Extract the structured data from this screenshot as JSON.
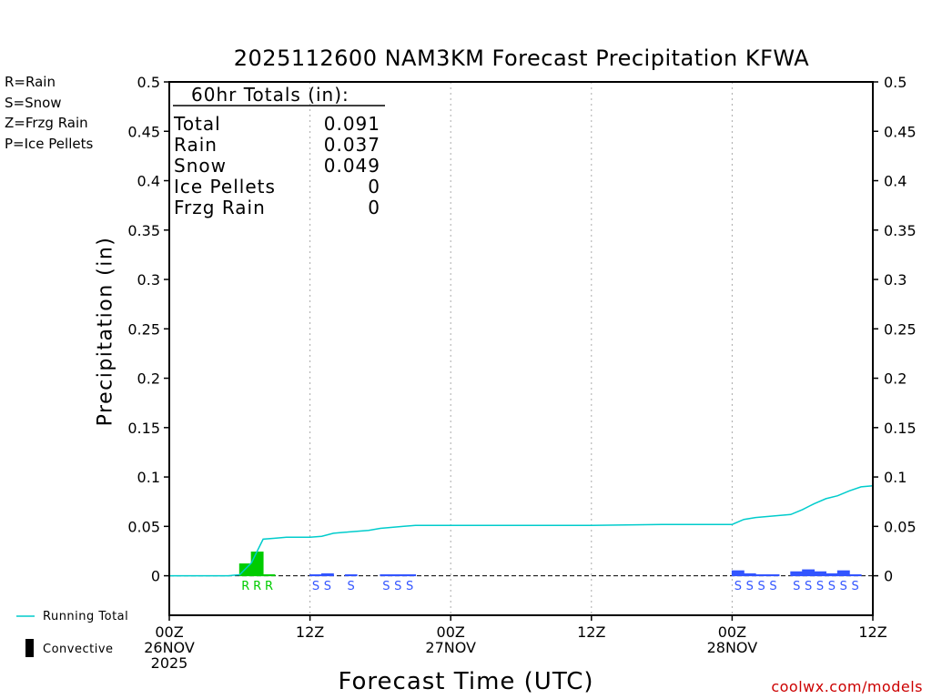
{
  "legend": {
    "items": [
      {
        "label": "R=Rain",
        "color": "#00cc00"
      },
      {
        "label": "S=Snow",
        "color": "#3355ff"
      },
      {
        "label": "Z=Frzg Rain",
        "color": "#ff8c1a"
      },
      {
        "label": "P=Ice Pellets",
        "color": "#ff1493"
      }
    ]
  },
  "totals": {
    "header": "60hr Totals (in):",
    "rows": [
      {
        "label": "Total",
        "value": "0.091"
      },
      {
        "label": "Rain",
        "value": "0.037"
      },
      {
        "label": "Snow",
        "value": "0.049"
      },
      {
        "label": "Ice Pellets",
        "value": "0"
      },
      {
        "label": "Frzg Rain",
        "value": "0"
      }
    ]
  },
  "key": {
    "running_total_label": "Running Total",
    "convective_label": "Convective",
    "running_total_color": "#00cccc"
  },
  "credit": "coolwx.com/models",
  "chart_data": {
    "type": "bar",
    "title": "2025112600 NAM3KM Forecast Precipitation KFWA",
    "xlabel": "Forecast Time (UTC)",
    "ylabel": "Precipitation (in)",
    "ylim": [
      -0.04,
      0.5
    ],
    "yticks": [
      0,
      0.05,
      0.1,
      0.15,
      0.2,
      0.25,
      0.3,
      0.35,
      0.4,
      0.45,
      0.5
    ],
    "ytick_labels": [
      "0",
      "0.05",
      "0.1",
      "0.15",
      "0.2",
      "0.25",
      "0.3",
      "0.35",
      "0.4",
      "0.45",
      "0.5"
    ],
    "xlim_hours": [
      0,
      60
    ],
    "xticks": [
      {
        "hour": 0,
        "lines": [
          "00Z",
          "26NOV",
          "2025"
        ]
      },
      {
        "hour": 12,
        "lines": [
          "12Z"
        ]
      },
      {
        "hour": 24,
        "lines": [
          "00Z",
          "27NOV"
        ]
      },
      {
        "hour": 36,
        "lines": [
          "12Z"
        ]
      },
      {
        "hour": 48,
        "lines": [
          "00Z",
          "28NOV"
        ]
      },
      {
        "hour": 60,
        "lines": [
          "12Z"
        ]
      }
    ],
    "grid_vertical": [
      12,
      24,
      36,
      48
    ],
    "colors": {
      "rain": "#00cc00",
      "snow": "#3355ff",
      "running_total": "#00cccc"
    },
    "hourly_precip": [
      {
        "hour": 7,
        "type": "rain",
        "value": 0.012
      },
      {
        "hour": 8,
        "type": "rain",
        "value": 0.024
      },
      {
        "hour": 9,
        "type": "rain",
        "value": 0.001
      },
      {
        "hour": 13,
        "type": "snow",
        "value": 0.001
      },
      {
        "hour": 14,
        "type": "snow",
        "value": 0.002
      },
      {
        "hour": 16,
        "type": "snow",
        "value": 0.001
      },
      {
        "hour": 19,
        "type": "snow",
        "value": 0.001
      },
      {
        "hour": 20,
        "type": "snow",
        "value": 0.001
      },
      {
        "hour": 21,
        "type": "snow",
        "value": 0.001
      },
      {
        "hour": 49,
        "type": "snow",
        "value": 0.005
      },
      {
        "hour": 50,
        "type": "snow",
        "value": 0.002
      },
      {
        "hour": 51,
        "type": "snow",
        "value": 0.001
      },
      {
        "hour": 52,
        "type": "snow",
        "value": 0.001
      },
      {
        "hour": 54,
        "type": "snow",
        "value": 0.004
      },
      {
        "hour": 55,
        "type": "snow",
        "value": 0.006
      },
      {
        "hour": 56,
        "type": "snow",
        "value": 0.004
      },
      {
        "hour": 57,
        "type": "snow",
        "value": 0.002
      },
      {
        "hour": 58,
        "type": "snow",
        "value": 0.005
      },
      {
        "hour": 59,
        "type": "snow",
        "value": 0.001
      }
    ],
    "running_total": {
      "hours": [
        0,
        1,
        2,
        3,
        4,
        5,
        6,
        7,
        8,
        9,
        10,
        11,
        12,
        13,
        14,
        15,
        16,
        17,
        18,
        19,
        20,
        21,
        22,
        23,
        24,
        30,
        36,
        42,
        48,
        49,
        50,
        51,
        52,
        53,
        54,
        55,
        56,
        57,
        58,
        59,
        60
      ],
      "values": [
        0,
        0,
        0,
        0,
        0,
        0,
        0.001,
        0.013,
        0.037,
        0.038,
        0.039,
        0.039,
        0.039,
        0.04,
        0.043,
        0.044,
        0.045,
        0.046,
        0.048,
        0.049,
        0.05,
        0.051,
        0.051,
        0.051,
        0.051,
        0.051,
        0.051,
        0.052,
        0.052,
        0.057,
        0.059,
        0.06,
        0.061,
        0.062,
        0.067,
        0.073,
        0.078,
        0.081,
        0.086,
        0.09,
        0.091
      ]
    }
  }
}
